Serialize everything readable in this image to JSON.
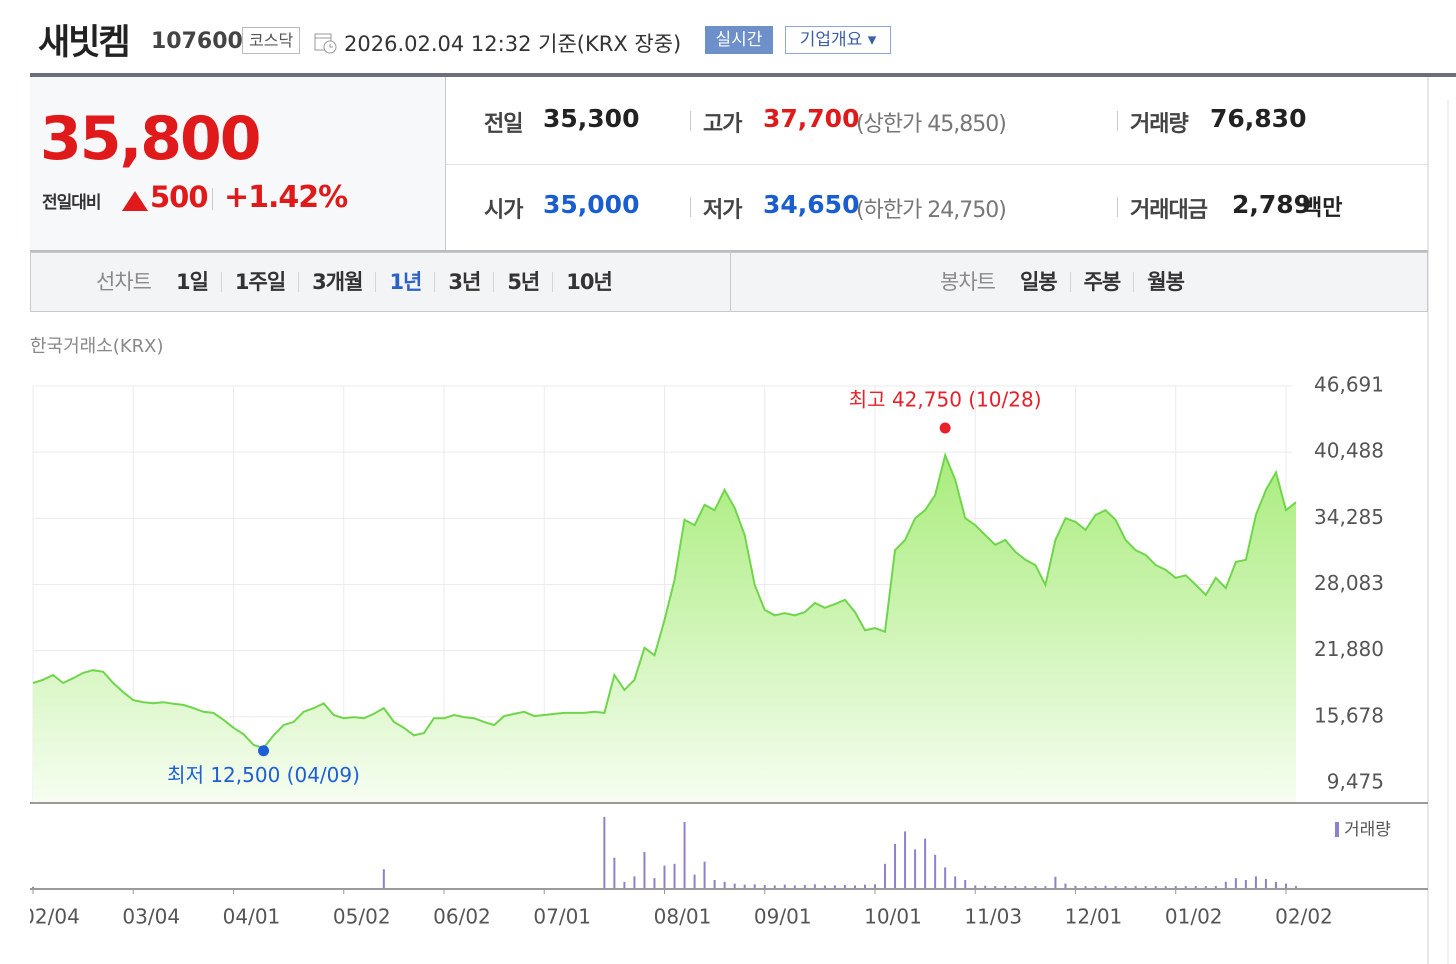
{
  "header": {
    "name": "새빗켐",
    "code": "107600",
    "market": "코스닥",
    "datetime": "2026.02.04 12:32",
    "basis": "기준(KRX 장중)",
    "buttons": [
      "실시간",
      "기업개요"
    ]
  },
  "summary": {
    "price": "35,800",
    "change_label": "전일대비",
    "change": "500",
    "change_pct": "+1.42%",
    "rows": [
      [
        {
          "label": "전일",
          "value": "35,300"
        },
        {
          "label": "고가",
          "value": "37,700",
          "note": "(상한가 45,850)"
        },
        {
          "label": "거래량",
          "value": "76,830"
        }
      ],
      [
        {
          "label": "시가",
          "value": "35,000"
        },
        {
          "label": "저가",
          "value": "34,650",
          "note": "(하한가 24,750)"
        },
        {
          "label": "거래대금",
          "value": "2,789",
          "unit": "백만"
        }
      ]
    ]
  },
  "tabs": {
    "line": {
      "label": "선차트",
      "items": [
        "1일",
        "1주일",
        "3개월",
        "1년",
        "3년",
        "5년",
        "10년"
      ],
      "selected": 3
    },
    "candle": {
      "label": "봉차트",
      "items": [
        "일봉",
        "주봉",
        "월봉"
      ]
    }
  },
  "chart_data": [
    {
      "type": "area",
      "source": "한국거래소(KRX)",
      "color": "#6fd64b",
      "grid": true,
      "values": [
        18850,
        19150,
        19600,
        18850,
        19300,
        19800,
        20050,
        19900,
        18850,
        18000,
        17250,
        17050,
        16950,
        17050,
        16900,
        16800,
        16500,
        16150,
        16050,
        15400,
        14650,
        14050,
        13050,
        12750,
        13950,
        14900,
        15200,
        16150,
        16500,
        16950,
        15850,
        15550,
        15650,
        15550,
        15950,
        16500,
        15200,
        14650,
        13950,
        14150,
        15550,
        15550,
        15850,
        15650,
        15550,
        15200,
        14900,
        15750,
        15950,
        16150,
        15750,
        15850,
        15950,
        16050,
        16050,
        16050,
        16150,
        16050,
        19600,
        18200,
        19150,
        22150,
        21450,
        24750,
        28500,
        34150,
        33650,
        35550,
        35050,
        36950,
        35250,
        32700,
        28050,
        25700,
        25200,
        25400,
        25200,
        25500,
        26350,
        25900,
        26250,
        26650,
        25500,
        23800,
        24000,
        23650,
        31300,
        32250,
        34300,
        35050,
        36450,
        40200,
        37900,
        34300,
        33650,
        32700,
        31800,
        32250,
        31150,
        30400,
        29900,
        28050,
        32250,
        34300,
        33950,
        33200,
        34600,
        35050,
        34150,
        32250,
        31300,
        30850,
        29900,
        29450,
        28700,
        28950,
        28050,
        27100,
        28700,
        27750,
        30200,
        30400,
        34600,
        36950,
        38600,
        35050,
        35800
      ],
      "xlim": [
        0,
        126
      ],
      "xticks": [
        {
          "value": 0,
          "label": "02/04"
        },
        {
          "value": 10,
          "label": "03/04"
        },
        {
          "value": 20,
          "label": "04/01"
        },
        {
          "value": 31,
          "label": "05/02"
        },
        {
          "value": 41,
          "label": "06/02"
        },
        {
          "value": 51,
          "label": "07/01"
        },
        {
          "value": 63,
          "label": "08/01"
        },
        {
          "value": 73,
          "label": "09/01"
        },
        {
          "value": 84,
          "label": "10/01"
        },
        {
          "value": 94,
          "label": "11/03"
        },
        {
          "value": 104,
          "label": "12/01"
        },
        {
          "value": 114,
          "label": "01/02"
        },
        {
          "value": 125,
          "label": "02/02"
        }
      ],
      "ylim": [
        7600,
        46691
      ],
      "yticks": [
        {
          "value": 9475,
          "label": "9,475"
        },
        {
          "value": 15678,
          "label": "15,678"
        },
        {
          "value": 21880,
          "label": "21,880"
        },
        {
          "value": 28083,
          "label": "28,083"
        },
        {
          "value": 34285,
          "label": "34,285"
        },
        {
          "value": 40488,
          "label": "40,488"
        },
        {
          "value": 46691,
          "label": "46,691"
        }
      ],
      "annotations": [
        {
          "text": "최고 42,750 (10/28)",
          "value": 42750,
          "at": "max",
          "color": "#e8202a"
        },
        {
          "text": "최저 12,500 (04/09)",
          "value": 12500,
          "at": "min",
          "color": "#1d5fd6"
        }
      ]
    },
    {
      "type": "bar",
      "series": [
        {
          "name": "거래량",
          "color": "#8e80cc",
          "values": [
            60,
            20,
            20,
            20,
            20,
            20,
            20,
            20,
            20,
            20,
            20,
            20,
            20,
            20,
            20,
            20,
            20,
            20,
            20,
            20,
            20,
            20,
            20,
            20,
            20,
            20,
            20,
            20,
            20,
            20,
            20,
            20,
            20,
            20,
            20,
            550,
            20,
            20,
            20,
            20,
            20,
            20,
            20,
            20,
            20,
            20,
            20,
            20,
            20,
            20,
            20,
            20,
            20,
            20,
            20,
            20,
            20,
            2000,
            870,
            200,
            350,
            1030,
            300,
            650,
            700,
            1860,
            400,
            760,
            250,
            200,
            150,
            120,
            130,
            110,
            100,
            120,
            100,
            110,
            130,
            100,
            100,
            110,
            100,
            120,
            130,
            700,
            1250,
            1600,
            1100,
            1400,
            950,
            600,
            350,
            250,
            100,
            90,
            80,
            90,
            80,
            80,
            80,
            80,
            340,
            150,
            90,
            80,
            80,
            90,
            80,
            80,
            80,
            80,
            80,
            80,
            80,
            80,
            80,
            80,
            80,
            200,
            300,
            250,
            350,
            280,
            200,
            150,
            80
          ]
        }
      ]
    }
  ]
}
